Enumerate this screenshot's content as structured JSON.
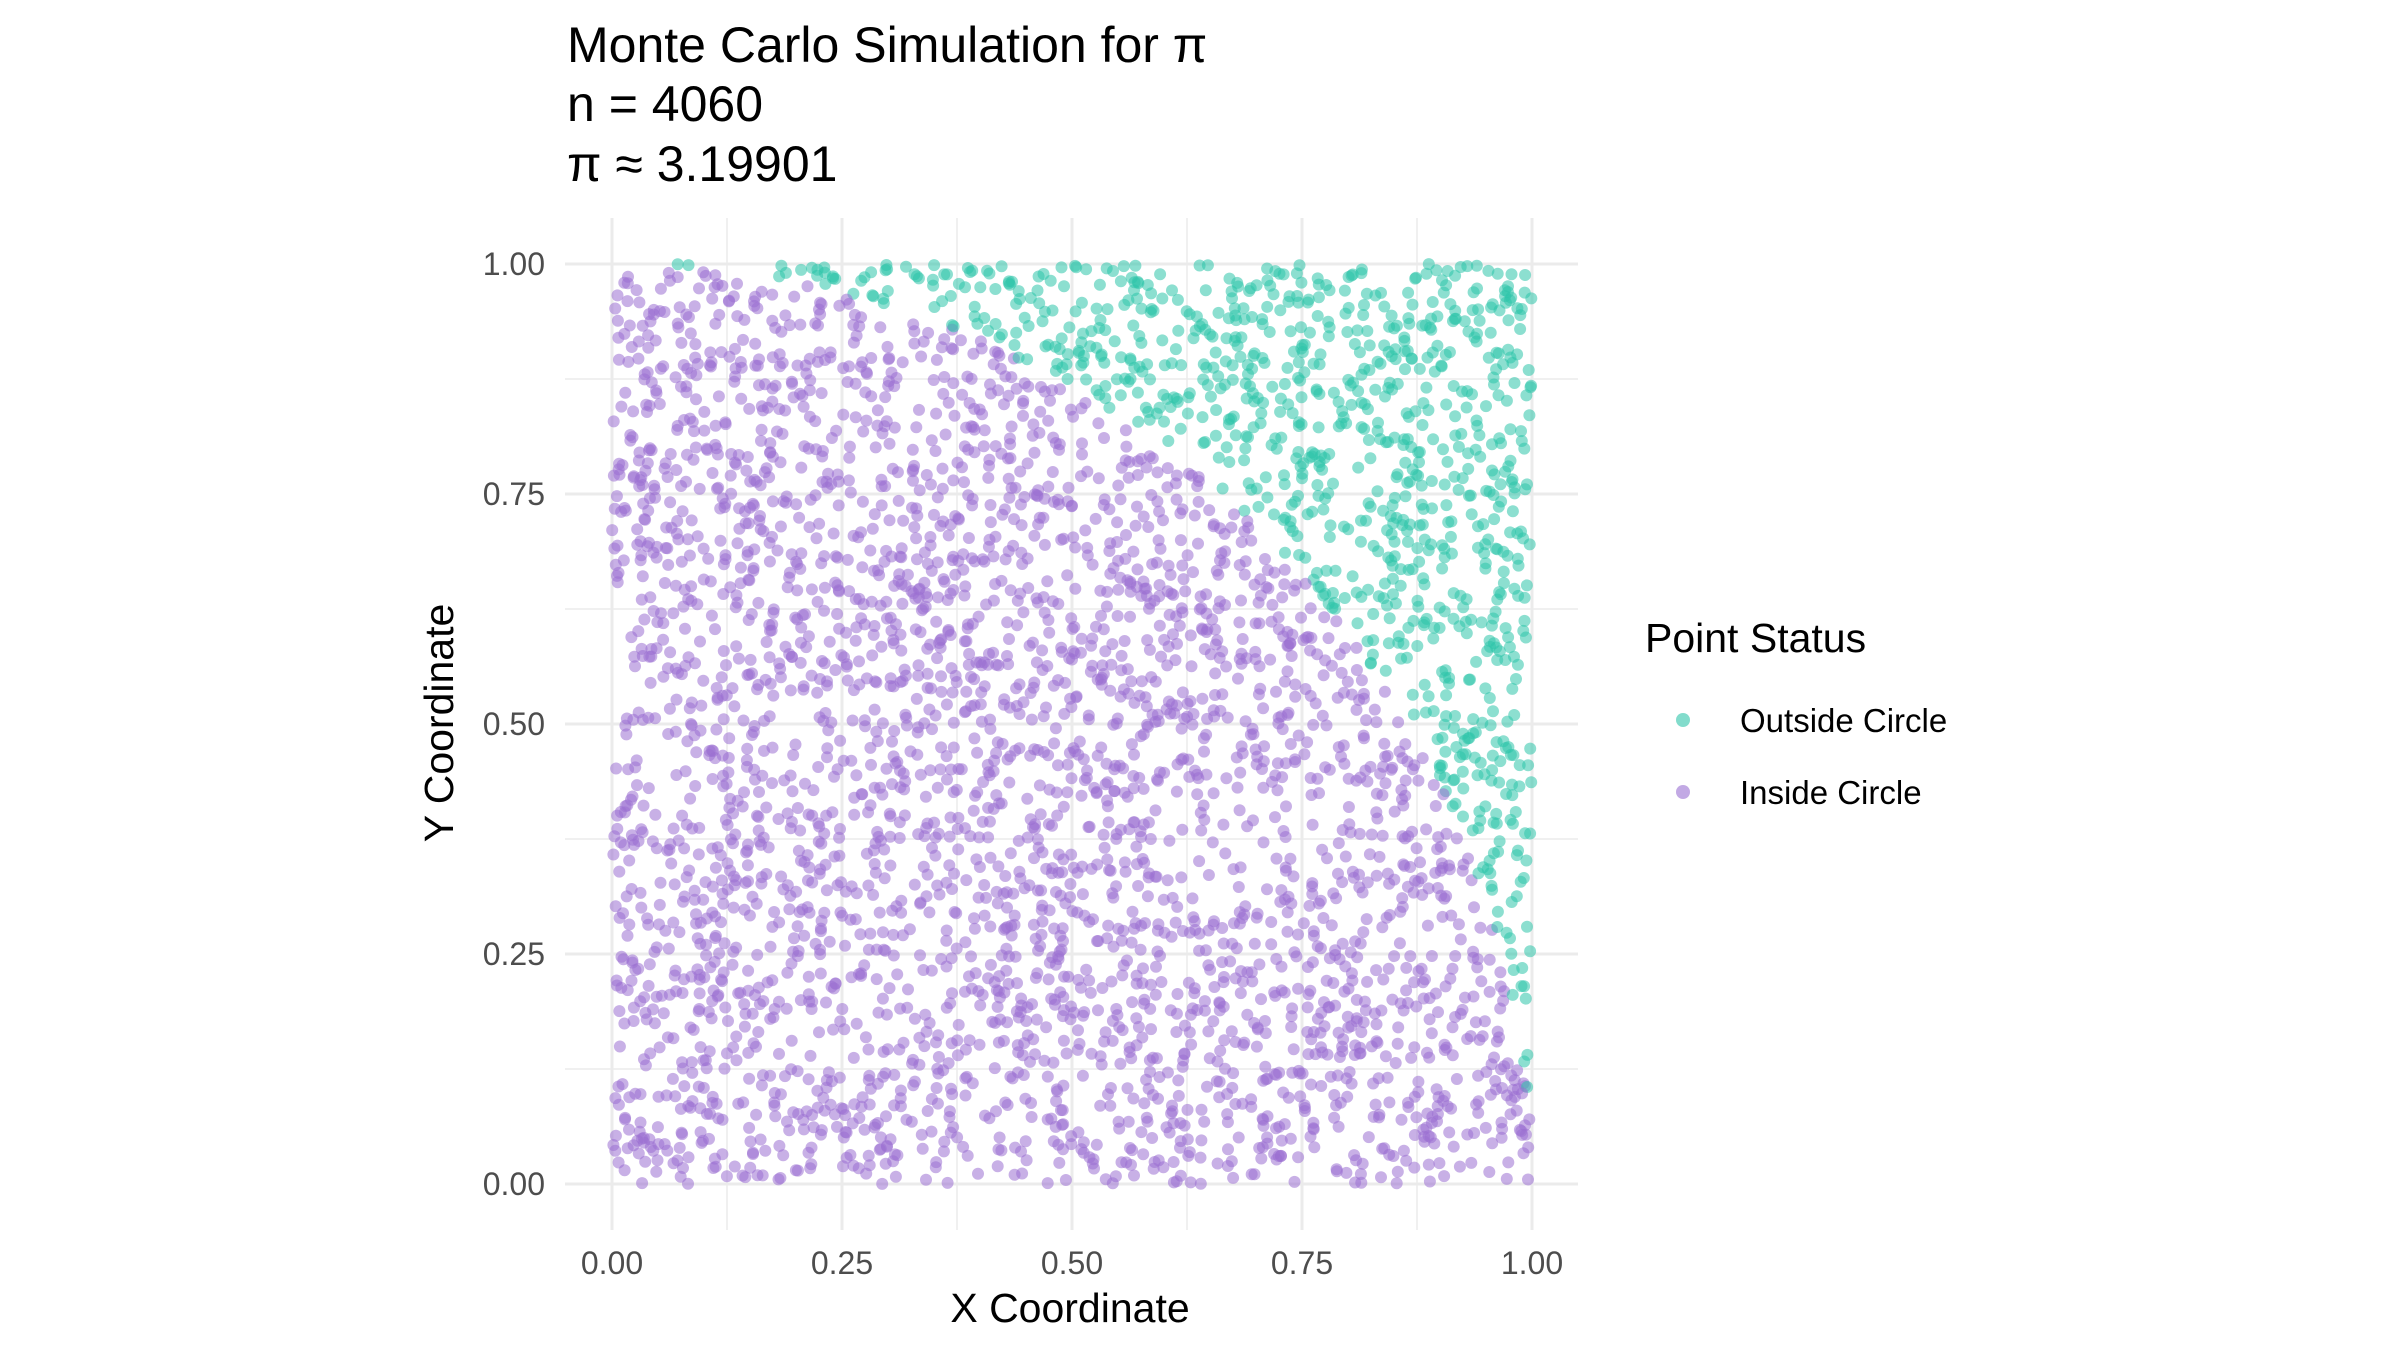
{
  "chart_data": {
    "type": "scatter",
    "title": [
      "Monte Carlo Simulation for π",
      "n = 4060",
      "π ≈ 3.19901"
    ],
    "xlabel": "X Coordinate",
    "ylabel": "Y Coordinate",
    "xlim": [
      0,
      1
    ],
    "ylim": [
      0,
      1
    ],
    "x_ticks": [
      "0.00",
      "0.25",
      "0.50",
      "0.75",
      "1.00"
    ],
    "y_ticks": [
      "0.00",
      "0.25",
      "0.50",
      "0.75",
      "1.00"
    ],
    "grid": true,
    "legend": {
      "title": "Point Status",
      "placement": "right",
      "entries": [
        "Outside Circle",
        "Inside Circle"
      ]
    },
    "n": 4060,
    "pi_estimate": 3.19901,
    "series": [
      {
        "name": "Outside Circle",
        "color": "#2ec4aa",
        "count": 813,
        "points": [
          [
            0.93,
            0.96
          ],
          [
            0.88,
            0.88
          ],
          [
            0.97,
            0.75
          ],
          [
            0.85,
            0.62
          ],
          [
            0.97,
            0.4
          ],
          [
            0.8,
            0.8
          ],
          [
            0.7,
            0.92
          ],
          [
            0.55,
            0.96
          ],
          [
            0.42,
            0.97
          ],
          [
            0.32,
            0.98
          ],
          [
            0.62,
            0.85
          ],
          [
            0.75,
            0.7
          ],
          [
            0.91,
            0.5
          ],
          [
            0.99,
            0.2
          ],
          [
            0.98,
            0.28
          ]
        ]
      },
      {
        "name": "Inside Circle",
        "color": "#9a6fd2",
        "count": 3247,
        "points": [
          [
            0.1,
            0.1
          ],
          [
            0.25,
            0.5
          ],
          [
            0.5,
            0.5
          ],
          [
            0.4,
            0.8
          ],
          [
            0.7,
            0.3
          ],
          [
            0.05,
            0.95
          ],
          [
            0.8,
            0.55
          ],
          [
            0.9,
            0.2
          ],
          [
            0.6,
            0.7
          ],
          [
            0.15,
            0.3
          ],
          [
            0.35,
            0.15
          ],
          [
            0.55,
            0.05
          ],
          [
            0.92,
            0.35
          ],
          [
            0.2,
            0.92
          ],
          [
            0.68,
            0.6
          ]
        ]
      }
    ]
  }
}
